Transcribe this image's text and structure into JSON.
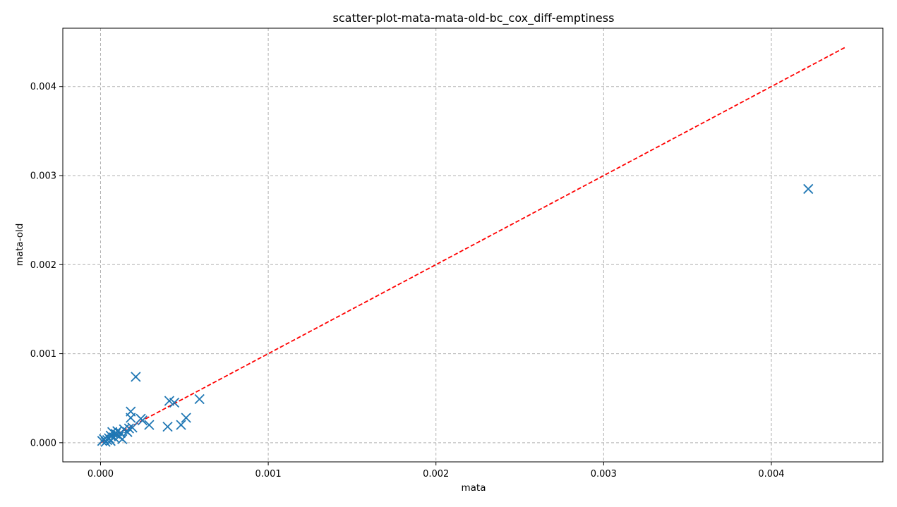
{
  "chart_data": {
    "type": "scatter",
    "title": "scatter-plot-mata-mata-old-bc_cox_diff-emptiness",
    "xlabel": "mata",
    "ylabel": "mata-old",
    "xlim": [
      -0.000225,
      0.004665
    ],
    "ylim": [
      -0.000215,
      0.004655
    ],
    "xticks": [
      0.0,
      0.001,
      0.002,
      0.003,
      0.004
    ],
    "xtick_labels": [
      "0.000",
      "0.001",
      "0.002",
      "0.003",
      "0.004"
    ],
    "yticks": [
      0.0,
      0.001,
      0.002,
      0.003,
      0.004
    ],
    "ytick_labels": [
      "0.000",
      "0.001",
      "0.002",
      "0.003",
      "0.004"
    ],
    "grid": true,
    "marker": "x",
    "marker_color": "#1f77b4",
    "reference_line": {
      "style": "dashed",
      "color": "#ff0000",
      "x": [
        0.0,
        0.00444
      ],
      "y": [
        0.0,
        0.00444
      ]
    },
    "points": [
      {
        "x": 1e-05,
        "y": 2e-05
      },
      {
        "x": 2e-05,
        "y": 4e-05
      },
      {
        "x": 3e-05,
        "y": 1e-05
      },
      {
        "x": 4e-05,
        "y": 3e-05
      },
      {
        "x": 5e-05,
        "y": 5e-05
      },
      {
        "x": 6e-05,
        "y": 2e-05
      },
      {
        "x": 6e-05,
        "y": 8e-05
      },
      {
        "x": 7e-05,
        "y": 0.00012
      },
      {
        "x": 8e-05,
        "y": 6e-05
      },
      {
        "x": 9e-05,
        "y": 0.0001
      },
      {
        "x": 0.0001,
        "y": 0.00013
      },
      {
        "x": 0.00011,
        "y": 7e-05
      },
      {
        "x": 0.00012,
        "y": 0.00011
      },
      {
        "x": 0.00013,
        "y": 4e-05
      },
      {
        "x": 0.00014,
        "y": 0.00015
      },
      {
        "x": 0.00016,
        "y": 0.00012
      },
      {
        "x": 0.00017,
        "y": 0.00016
      },
      {
        "x": 0.00018,
        "y": 0.00028
      },
      {
        "x": 0.00018,
        "y": 0.00035
      },
      {
        "x": 0.00019,
        "y": 0.00017
      },
      {
        "x": 0.00021,
        "y": 0.00074
      },
      {
        "x": 0.00024,
        "y": 0.00027
      },
      {
        "x": 0.00025,
        "y": 0.00025
      },
      {
        "x": 0.00029,
        "y": 0.0002
      },
      {
        "x": 0.0004,
        "y": 0.00018
      },
      {
        "x": 0.00041,
        "y": 0.00047
      },
      {
        "x": 0.00044,
        "y": 0.00045
      },
      {
        "x": 0.00048,
        "y": 0.0002
      },
      {
        "x": 0.00051,
        "y": 0.00028
      },
      {
        "x": 0.00059,
        "y": 0.00049
      },
      {
        "x": 0.00422,
        "y": 0.00285
      }
    ]
  }
}
